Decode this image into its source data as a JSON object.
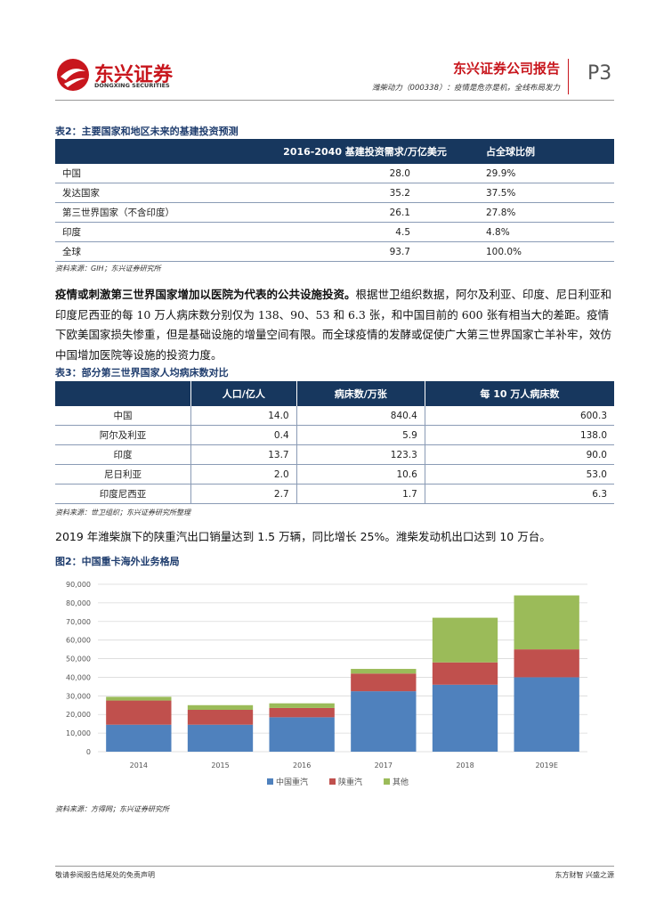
{
  "header": {
    "logo_cn": "东兴证券",
    "logo_en": "DONGXING SECURITIES",
    "report": "东兴证券公司报告",
    "subtitle": "潍柴动力（000338）：疫情是危亦是机，全线布局发力",
    "page": "P3"
  },
  "table2": {
    "caption": "表2：主要国家和地区未来的基建投资预测",
    "columns": [
      "2016-2040 基建投资需求/万亿美元",
      "占全球比例"
    ],
    "rows": [
      [
        "中国",
        "28.0",
        "29.9%"
      ],
      [
        "发达国家",
        "35.2",
        "37.5%"
      ],
      [
        "第三世界国家（不含印度）",
        "26.1",
        "27.8%"
      ],
      [
        "印度",
        "4.5",
        "4.8%"
      ],
      [
        "全球",
        "93.7",
        "100.0%"
      ]
    ],
    "source": "资料来源：GIH；东兴证券研究所"
  },
  "paragraph1": {
    "lead": "疫情或刺激第三世界国家增加以医院为代表的公共设施投资。",
    "text": "根据世卫组织数据，阿尔及利亚、印度、尼日利亚和印度尼西亚的每 10 万人病床数分别仅为 138、90、53 和 6.3 张，和中国目前的 600 张有相当大的差距。疫情下欧美国家损失惨重，但是基础设施的增量空间有限。而全球疫情的发酵或促使广大第三世界国家亡羊补牢，效仿中国增加医院等设施的投资力度。"
  },
  "table3": {
    "caption": "表3：部分第三世界国家人均病床数对比",
    "columns": [
      "人口/亿人",
      "病床数/万张",
      "每 10 万人病床数"
    ],
    "rows": [
      [
        "中国",
        "14.0",
        "840.4",
        "600.3"
      ],
      [
        "阿尔及利亚",
        "0.4",
        "5.9",
        "138.0"
      ],
      [
        "印度",
        "13.7",
        "123.3",
        "90.0"
      ],
      [
        "尼日利亚",
        "2.0",
        "10.6",
        "53.0"
      ],
      [
        "印度尼西亚",
        "2.7",
        "1.7",
        "6.3"
      ]
    ],
    "source": "资料来源：世卫组织；东兴证券研究所整理"
  },
  "paragraph2": "2019 年潍柴旗下的陕重汽出口销量达到 1.5 万辆，同比增长 25%。潍柴发动机出口达到 10 万台。",
  "figure": {
    "caption": "图2：中国重卡海外业务格局",
    "source": "资料来源：方得网；东兴证券研究所"
  },
  "chart_data": {
    "type": "stacked-bar",
    "categories": [
      "2014",
      "2015",
      "2016",
      "2017",
      "2018",
      "2019E"
    ],
    "series": [
      {
        "name": "中国重汽",
        "color": "#4f81bd",
        "values": [
          14500,
          14500,
          18500,
          32500,
          36000,
          40000
        ]
      },
      {
        "name": "陕重汽",
        "color": "#c0504d",
        "values": [
          13000,
          8000,
          5000,
          9500,
          12000,
          15000
        ]
      },
      {
        "name": "其他",
        "color": "#9bbb59",
        "values": [
          2000,
          2500,
          2500,
          2500,
          24000,
          29000
        ]
      }
    ],
    "ylim": [
      0,
      90000
    ],
    "yticks": [
      0,
      {
        "value": 10000,
        "label": "10,000"
      },
      {
        "value": 20000,
        "label": "20,000"
      },
      {
        "value": 30000,
        "label": "30,000"
      },
      {
        "value": 40000,
        "label": "40,000"
      },
      {
        "value": 50000,
        "label": "50,000"
      },
      {
        "value": 60000,
        "label": "60,000"
      },
      {
        "value": 70000,
        "label": "70,000"
      },
      {
        "value": 80000,
        "label": "80,000"
      },
      {
        "value": 90000,
        "label": "90,000"
      }
    ],
    "grid": true,
    "legend": "bottom"
  },
  "footer": {
    "left": "敬请参阅报告结尾处的免责声明",
    "right": "东方财智 兴盛之源"
  }
}
